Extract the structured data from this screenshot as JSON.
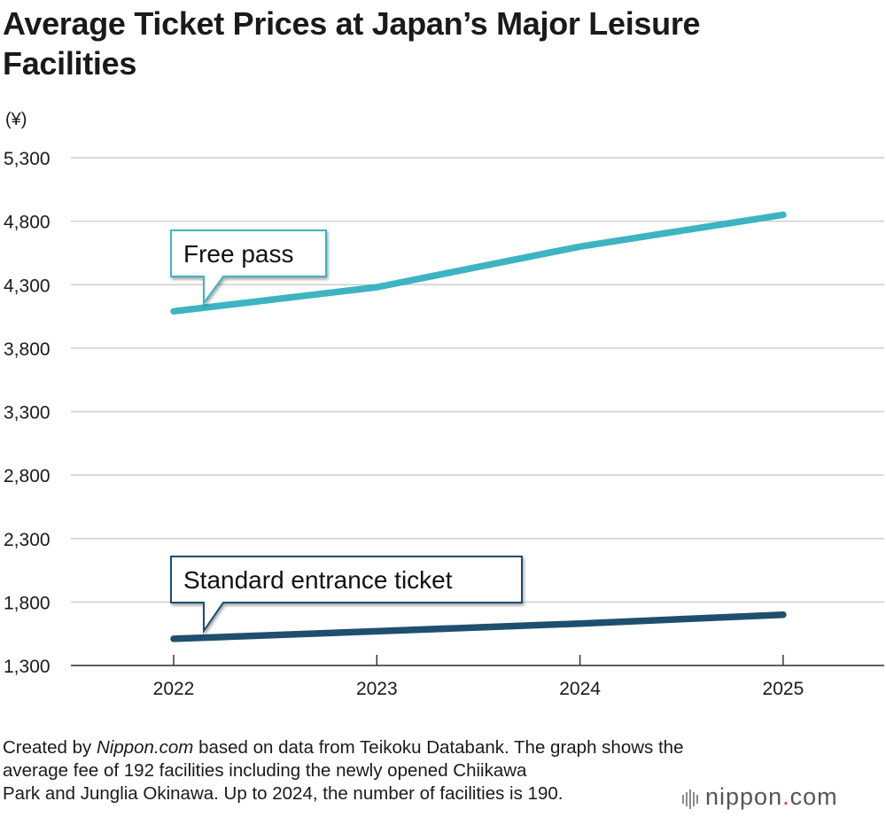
{
  "title": "Average Ticket Prices at Japan’s Major Leisure Facilities",
  "chart_data": {
    "type": "line",
    "title": "Average Ticket Prices at Japan’s Major Leisure Facilities",
    "ylabel": "(¥)",
    "xlabel": "",
    "ylim": [
      1300,
      5300
    ],
    "y_ticks": [
      "5,300",
      "4,800",
      "4,300",
      "3,800",
      "3,300",
      "2,800",
      "2,300",
      "1,800",
      "1,300"
    ],
    "y_tick_values": [
      5300,
      4800,
      4300,
      3800,
      3300,
      2800,
      2300,
      1800,
      1300
    ],
    "categories": [
      "2022",
      "2023",
      "2024",
      "2025"
    ],
    "grid": true,
    "series": [
      {
        "name": "Free pass",
        "values": [
          4090,
          4280,
          4600,
          4850
        ],
        "color": "#3db4c2"
      },
      {
        "name": "Standard entrance ticket",
        "values": [
          1510,
          1570,
          1630,
          1700
        ],
        "color": "#1f4f6e"
      }
    ]
  },
  "footnote": {
    "created_by": "Created by ",
    "source_name": "Nippon.com",
    "line1_rest": " based on data from Teikoku Databank. The graph shows the",
    "line2": "average fee of 192 facilities including the newly opened Chiikawa",
    "line3": "Park and Junglia Okinawa. Up to 2024, the number of facilities is 190."
  },
  "brand": {
    "name": "nippon",
    "dot": ".",
    "suffix": "com"
  }
}
